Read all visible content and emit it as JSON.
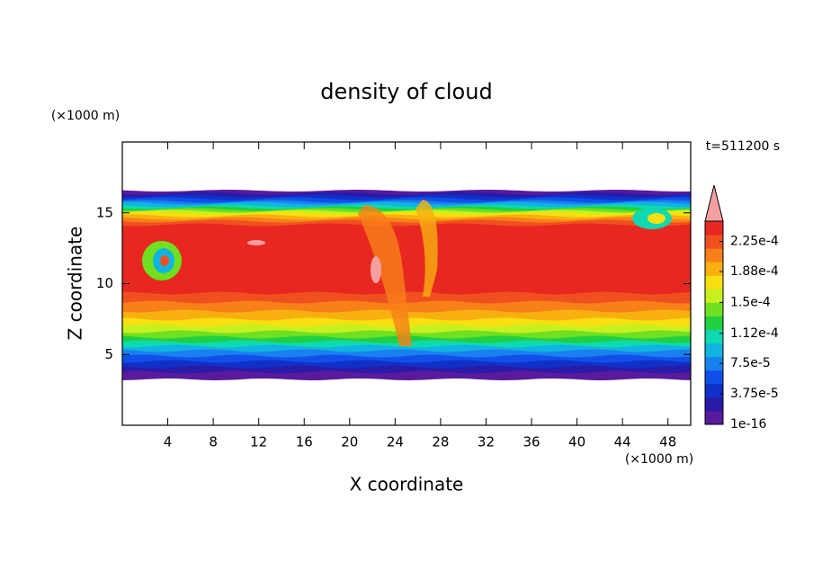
{
  "chart_data": {
    "type": "contour",
    "title": "density of cloud",
    "x_label": "X coordinate",
    "y_label": "Z coordinate",
    "x_unit": "(×1000 m)",
    "y_unit": "(×1000 m)",
    "annotation": "t=511200 s",
    "xlim": [
      0,
      50
    ],
    "ylim": [
      0,
      20
    ],
    "xticks": [
      4,
      8,
      12,
      16,
      20,
      24,
      28,
      32,
      36,
      40,
      44,
      48
    ],
    "yticks": [
      5,
      10,
      15
    ],
    "colorbar": {
      "lim": [
        0,
        0.00025
      ],
      "ticks": [
        {
          "value": 1e-16,
          "label": "1e-16"
        },
        {
          "value": 3.75e-05,
          "label": "3.75e-5"
        },
        {
          "value": 7.5e-05,
          "label": "7.5e-5"
        },
        {
          "value": 0.000112,
          "label": "1.12e-4"
        },
        {
          "value": 0.00015,
          "label": "1.5e-4"
        },
        {
          "value": 0.000188,
          "label": "1.88e-4"
        },
        {
          "value": 0.000225,
          "label": "2.25e-4"
        }
      ],
      "colors": [
        "#5a1a9e",
        "#2a1aa8",
        "#1030c8",
        "#1050e8",
        "#1a80f0",
        "#10b4e0",
        "#10d8b0",
        "#20d040",
        "#70e020",
        "#c8f020",
        "#f8e010",
        "#f8b010",
        "#f88018",
        "#f05020",
        "#e82820"
      ],
      "extend_color": "#f4a0a0"
    }
  }
}
